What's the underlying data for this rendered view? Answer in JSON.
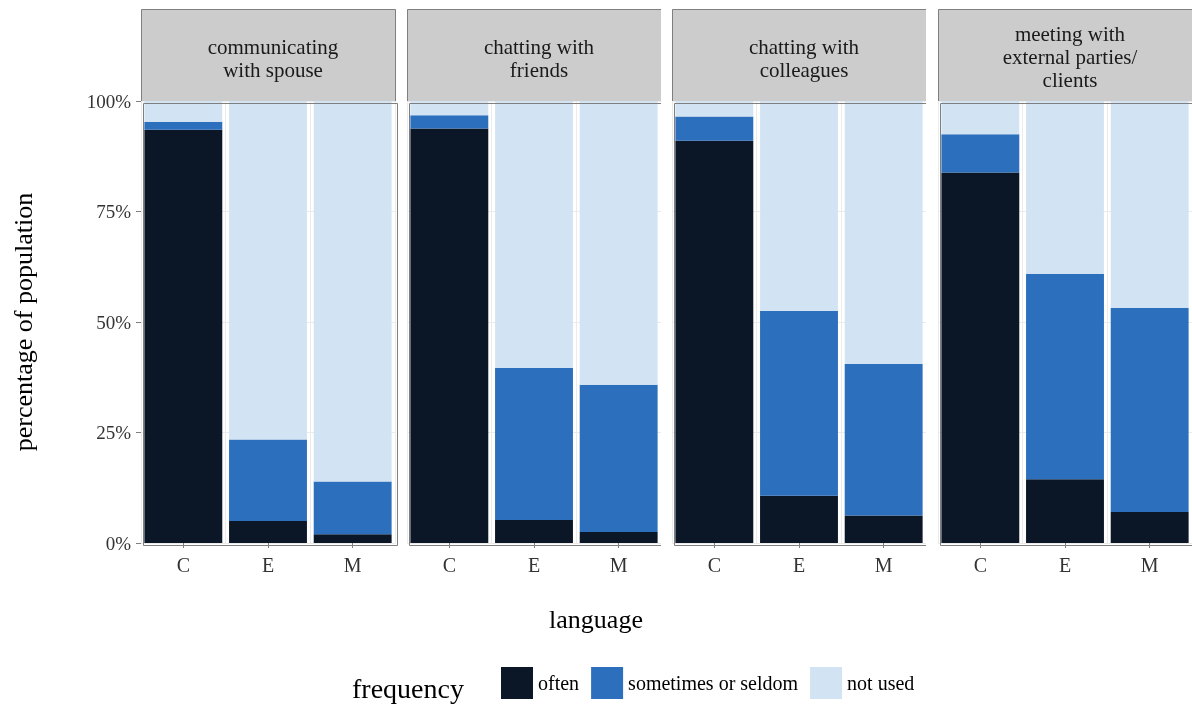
{
  "chart_data": [
    {
      "type": "bar",
      "stacked": true,
      "title": "communicating\nwith spouse",
      "ylabel": "percentage of population",
      "xlabel": "language",
      "legend_title": "frequency",
      "legend": "bottom",
      "grid": true,
      "categories": [
        "C",
        "E",
        "M"
      ],
      "ylim": [
        0,
        100
      ],
      "yticks": [
        {
          "value": 0,
          "label": "0%"
        },
        {
          "value": 25,
          "label": "25%"
        },
        {
          "value": 50,
          "label": "50%"
        },
        {
          "value": 75,
          "label": "75%"
        },
        {
          "value": 100,
          "label": "100%"
        }
      ],
      "series": [
        {
          "name": "often",
          "color": "#0b1626",
          "values": [
            93.5,
            5.0,
            2.0
          ]
        },
        {
          "name": "sometimes or seldom",
          "color": "#2b6fbd",
          "values": [
            1.8,
            18.4,
            11.9
          ]
        },
        {
          "name": "not used",
          "color": "#d2e4f3",
          "values": [
            4.7,
            76.6,
            86.1
          ]
        }
      ]
    },
    {
      "type": "bar",
      "stacked": true,
      "title": "chatting with\nfriends",
      "grid": true,
      "tick_labels": "x",
      "categories": [
        "C",
        "E",
        "M"
      ],
      "ylim": [
        0,
        100
      ],
      "yticks": [
        {
          "value": 0,
          "label": null
        },
        {
          "value": 25,
          "label": null
        },
        {
          "value": 50,
          "label": null
        },
        {
          "value": 75,
          "label": null
        },
        {
          "value": 100,
          "label": null
        }
      ],
      "series": [
        {
          "color": "#0b1626",
          "values": [
            93.8,
            5.2,
            2.5
          ]
        },
        {
          "color": "#2b6fbd",
          "values": [
            3.0,
            34.4,
            33.3
          ]
        },
        {
          "color": "#d2e4f3",
          "values": [
            3.2,
            60.4,
            64.2
          ]
        }
      ]
    },
    {
      "type": "bar",
      "stacked": true,
      "title": "chatting with\ncolleagues",
      "grid": true,
      "tick_labels": "x",
      "categories": [
        "C",
        "E",
        "M"
      ],
      "ylim": [
        0,
        100
      ],
      "yticks": [
        {
          "value": 0,
          "label": null
        },
        {
          "value": 25,
          "label": null
        },
        {
          "value": 50,
          "label": null
        },
        {
          "value": 75,
          "label": null
        },
        {
          "value": 100,
          "label": null
        }
      ],
      "series": [
        {
          "color": "#0b1626",
          "values": [
            91.0,
            10.7,
            6.2
          ]
        },
        {
          "color": "#2b6fbd",
          "values": [
            5.5,
            41.8,
            34.3
          ]
        },
        {
          "color": "#d2e4f3",
          "values": [
            3.5,
            47.5,
            59.5
          ]
        }
      ]
    },
    {
      "type": "bar",
      "stacked": true,
      "title": "meeting with\nexternal parties/\nclients",
      "grid": true,
      "tick_labels": "x",
      "categories": [
        "C",
        "E",
        "M"
      ],
      "ylim": [
        0,
        100
      ],
      "yticks": [
        {
          "value": 0,
          "label": null
        },
        {
          "value": 25,
          "label": null
        },
        {
          "value": 50,
          "label": null
        },
        {
          "value": 75,
          "label": null
        },
        {
          "value": 100,
          "label": null
        }
      ],
      "series": [
        {
          "color": "#0b1626",
          "values": [
            83.8,
            14.4,
            7.0
          ]
        },
        {
          "color": "#2b6fbd",
          "values": [
            8.7,
            46.5,
            46.2
          ]
        },
        {
          "color": "#d2e4f3",
          "values": [
            7.5,
            39.1,
            46.8
          ]
        }
      ]
    }
  ]
}
